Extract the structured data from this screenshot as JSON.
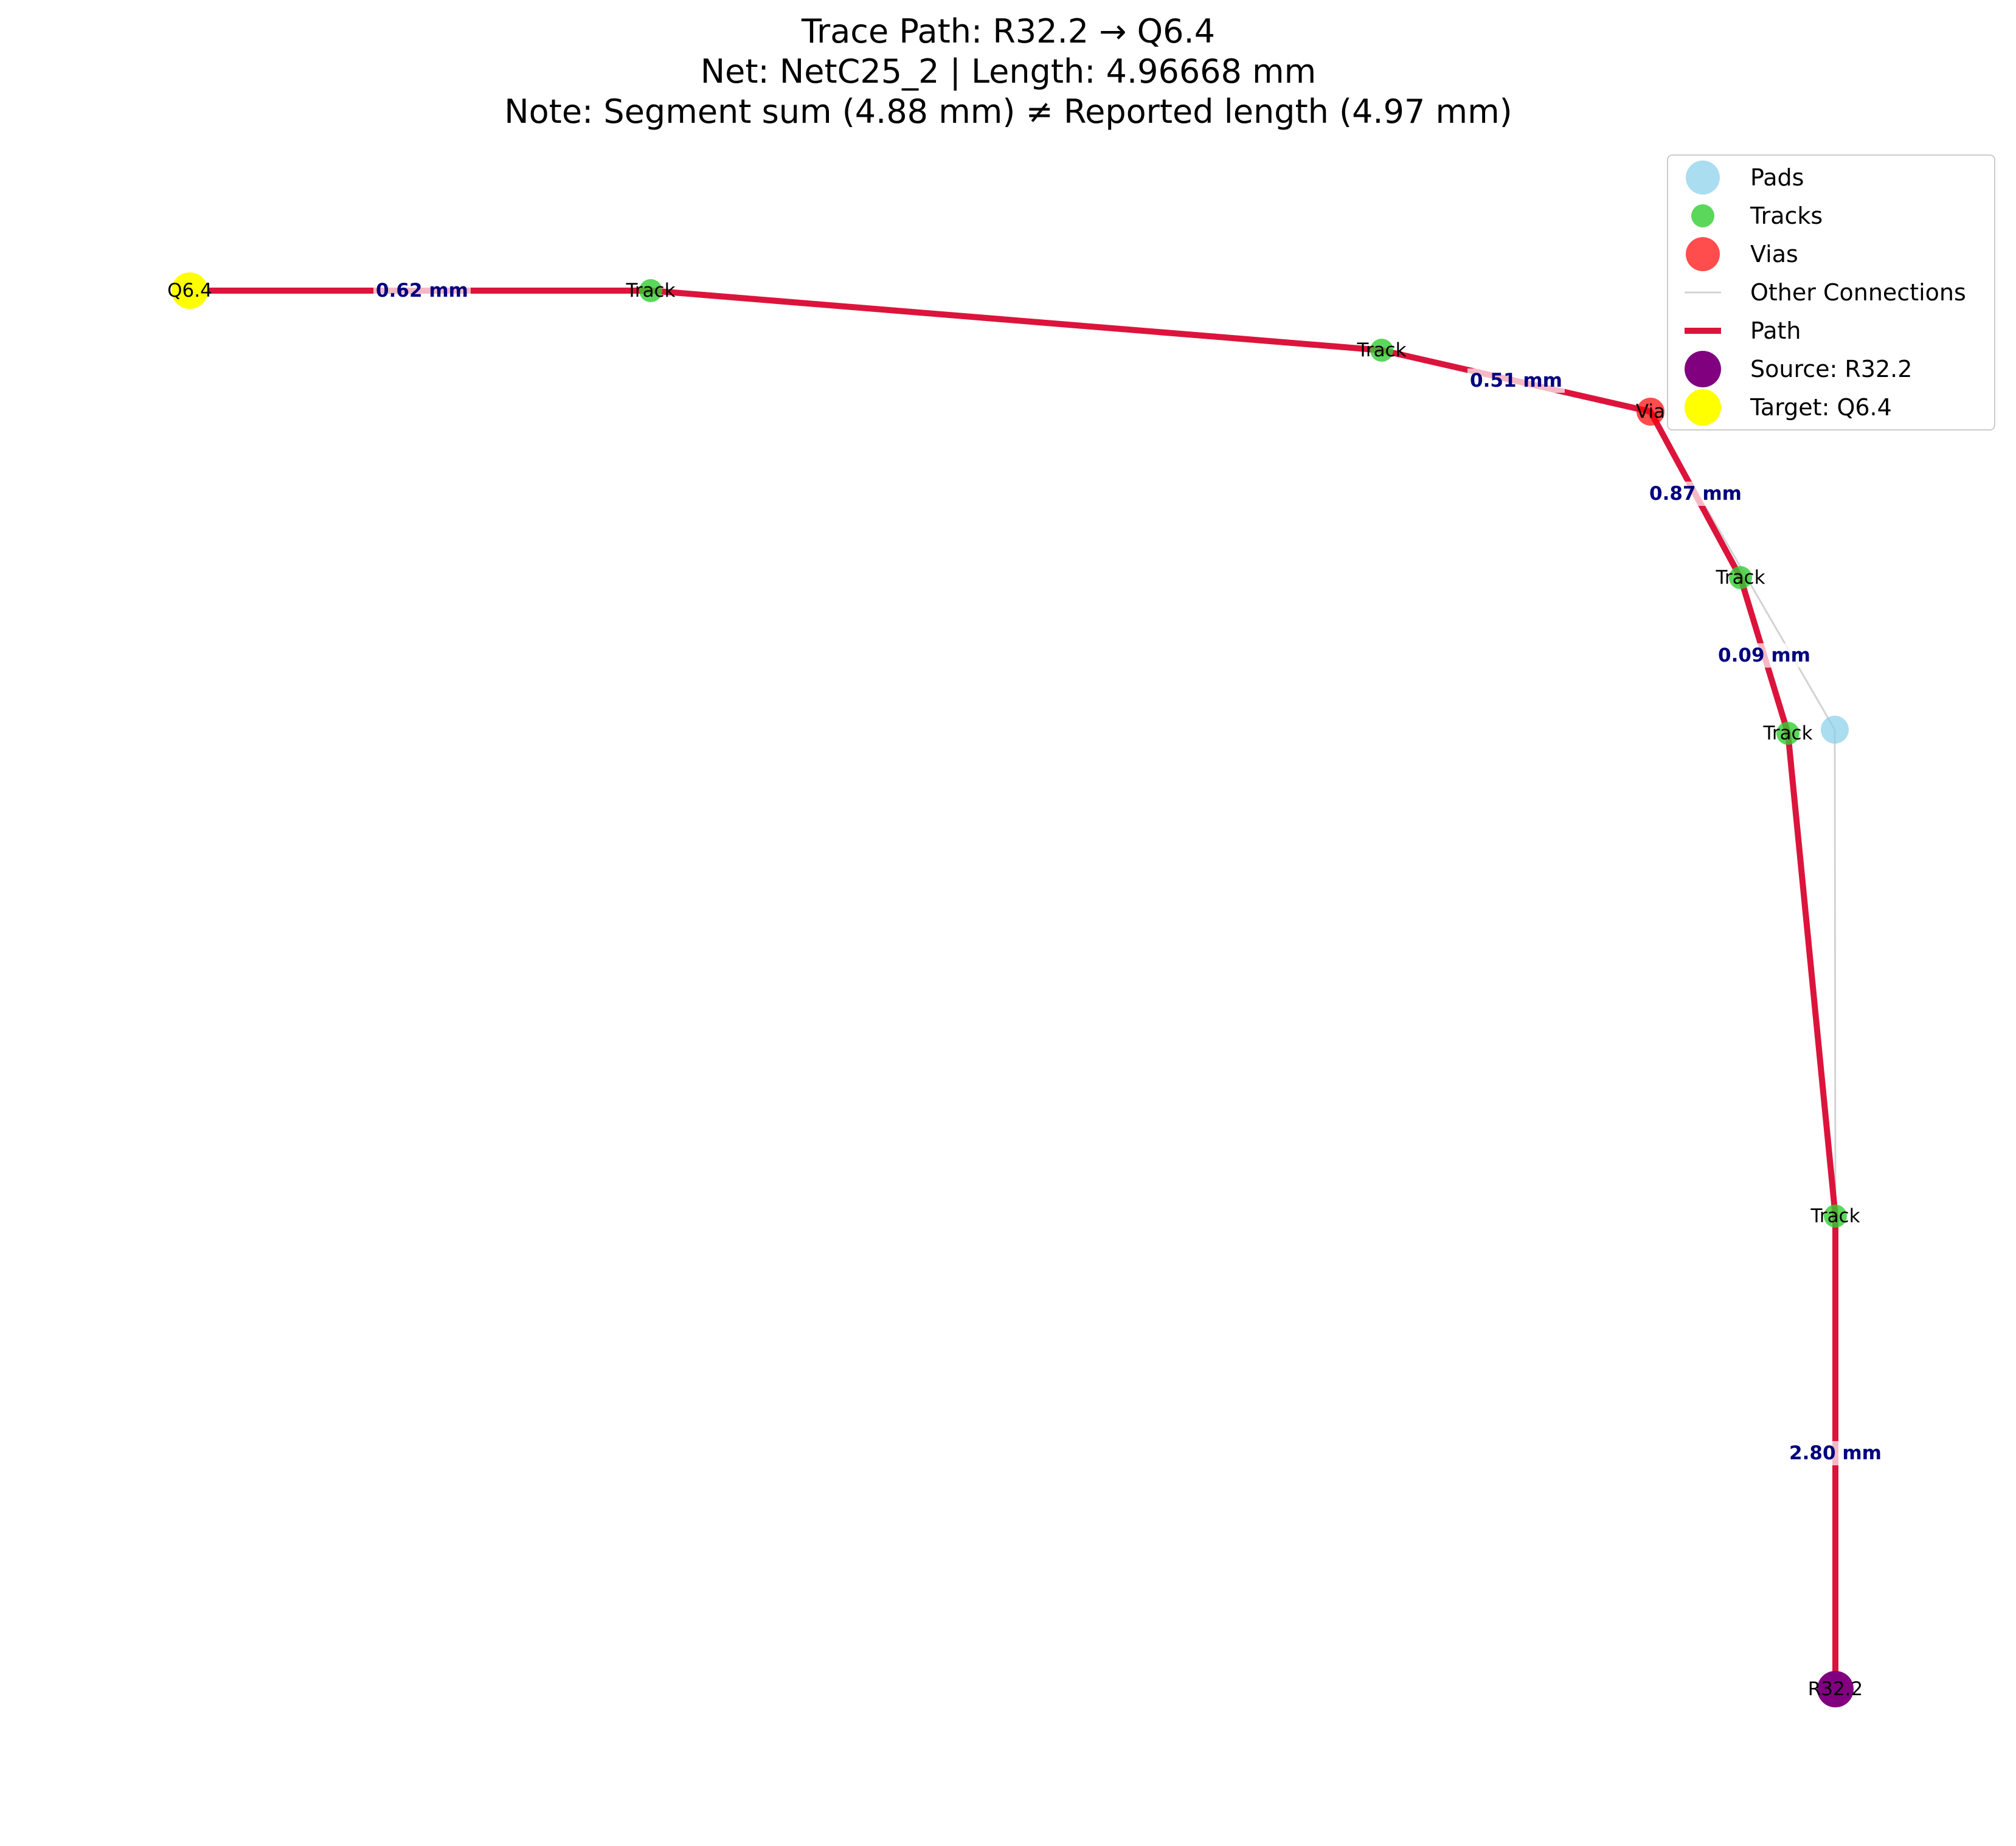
{
  "title_lines": [
    "Trace Path: R32.2 → Q6.4",
    "Net: NetC25_2 | Length: 4.96668 mm",
    "Note: Segment sum (4.88 mm) ≠ Reported length (4.97 mm)"
  ],
  "colors": {
    "pad": "#87ceeb",
    "track": "#32cd32",
    "via": "#ff0000",
    "other_connection": "#d3d3d3",
    "path": "#dc143c",
    "source": "#800080",
    "target": "#ffff00",
    "segment_label": "#000080"
  },
  "legend": [
    {
      "label": "Pads",
      "kind": "pad"
    },
    {
      "label": "Tracks",
      "kind": "track"
    },
    {
      "label": "Vias",
      "kind": "via"
    },
    {
      "label": "Other Connections",
      "kind": "other_connection"
    },
    {
      "label": "Path",
      "kind": "path"
    },
    {
      "label": "Source: R32.2",
      "kind": "source"
    },
    {
      "label": "Target: Q6.4",
      "kind": "target"
    }
  ],
  "nodes": [
    {
      "id": "q64",
      "kind": "target",
      "label": "Q6.4"
    },
    {
      "id": "t1",
      "kind": "track",
      "label": "Track"
    },
    {
      "id": "t2",
      "kind": "track",
      "label": "Track"
    },
    {
      "id": "via",
      "kind": "via",
      "label": "Via"
    },
    {
      "id": "t3",
      "kind": "track",
      "label": "Track"
    },
    {
      "id": "t4",
      "kind": "track",
      "label": "Track"
    },
    {
      "id": "pad",
      "kind": "pad",
      "label": ""
    },
    {
      "id": "t5",
      "kind": "track",
      "label": "Track"
    },
    {
      "id": "r322",
      "kind": "source",
      "label": "R32.2"
    }
  ],
  "other_connections": [
    {
      "from": "via",
      "to": "pad"
    },
    {
      "from": "pad",
      "to": "t5"
    }
  ],
  "path_segments": [
    {
      "from": "q64",
      "to": "t1",
      "label": "0.62 mm"
    },
    {
      "from": "t1",
      "to": "t2",
      "label": ""
    },
    {
      "from": "t2",
      "to": "via",
      "label": "0.51 mm"
    },
    {
      "from": "via",
      "to": "t3",
      "label": "0.87 mm"
    },
    {
      "from": "t3",
      "to": "t4",
      "label": "0.09 mm"
    },
    {
      "from": "t4",
      "to": "t5",
      "label": ""
    },
    {
      "from": "t5",
      "to": "r322",
      "label": "2.80 mm"
    }
  ]
}
